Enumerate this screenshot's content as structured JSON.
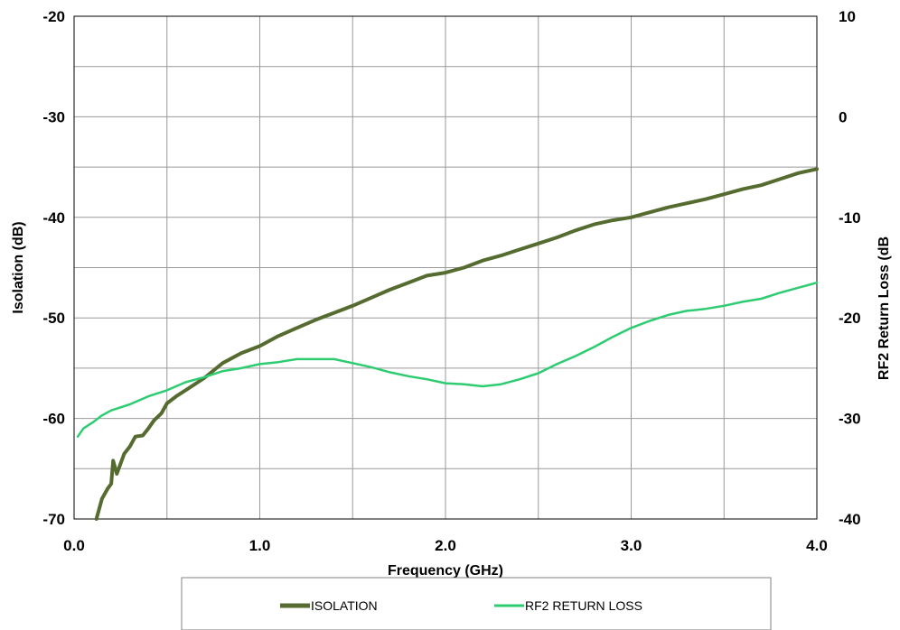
{
  "chart_data": {
    "type": "line",
    "xlabel": "Frequency (GHz)",
    "ylabel_left": "Isolation (dB)",
    "ylabel_right": "RF2 Return Loss  (dB",
    "xlim": [
      0,
      4
    ],
    "ylim_left": [
      -70,
      -20
    ],
    "ylim_right": [
      -40,
      10
    ],
    "x_ticks": [
      "0.0",
      "1.0",
      "2.0",
      "3.0",
      "4.0"
    ],
    "y_left_ticks": [
      "-20",
      "-30",
      "-40",
      "-50",
      "-60",
      "-70"
    ],
    "y_right_ticks": [
      "10",
      "0",
      "-10",
      "-20",
      "-30",
      "-40"
    ],
    "grid": true,
    "legend_position": "bottom",
    "series": [
      {
        "name": "ISOLATION",
        "axis": "left",
        "color": "#556b2f",
        "x": [
          0.12,
          0.15,
          0.18,
          0.2,
          0.21,
          0.23,
          0.27,
          0.3,
          0.33,
          0.37,
          0.4,
          0.43,
          0.47,
          0.5,
          0.55,
          0.6,
          0.7,
          0.8,
          0.9,
          1.0,
          1.1,
          1.2,
          1.3,
          1.4,
          1.5,
          1.6,
          1.7,
          1.8,
          1.9,
          2.0,
          2.1,
          2.2,
          2.3,
          2.4,
          2.5,
          2.6,
          2.7,
          2.8,
          2.9,
          3.0,
          3.1,
          3.2,
          3.3,
          3.4,
          3.5,
          3.6,
          3.7,
          3.8,
          3.9,
          4.0
        ],
        "y": [
          -70,
          -68,
          -67,
          -66.5,
          -64.2,
          -65.5,
          -63.5,
          -62.8,
          -61.8,
          -61.7,
          -61,
          -60.2,
          -59.5,
          -58.5,
          -57.8,
          -57.2,
          -56,
          -54.5,
          -53.5,
          -52.8,
          -51.8,
          -51,
          -50.2,
          -49.5,
          -48.8,
          -48,
          -47.2,
          -46.5,
          -45.8,
          -45.5,
          -45,
          -44.3,
          -43.8,
          -43.2,
          -42.6,
          -42,
          -41.3,
          -40.7,
          -40.3,
          -40,
          -39.5,
          -39,
          -38.6,
          -38.2,
          -37.7,
          -37.2,
          -36.8,
          -36.2,
          -35.6,
          -35.2
        ]
      },
      {
        "name": "RF2 RETURN LOSS",
        "axis": "right",
        "color": "#2ecc71",
        "x": [
          0.02,
          0.05,
          0.1,
          0.15,
          0.2,
          0.3,
          0.4,
          0.5,
          0.6,
          0.7,
          0.8,
          0.9,
          1.0,
          1.1,
          1.2,
          1.3,
          1.4,
          1.5,
          1.6,
          1.7,
          1.8,
          1.9,
          2.0,
          2.1,
          2.2,
          2.3,
          2.4,
          2.5,
          2.6,
          2.7,
          2.8,
          2.9,
          3.0,
          3.1,
          3.2,
          3.3,
          3.4,
          3.5,
          3.6,
          3.7,
          3.8,
          3.9,
          4.0
        ],
        "y": [
          -31.8,
          -31,
          -30.4,
          -29.7,
          -29.2,
          -28.6,
          -27.8,
          -27.2,
          -26.4,
          -25.9,
          -25.3,
          -25,
          -24.6,
          -24.4,
          -24.1,
          -24.1,
          -24.1,
          -24.5,
          -24.9,
          -25.4,
          -25.8,
          -26.1,
          -26.5,
          -26.6,
          -26.8,
          -26.6,
          -26.1,
          -25.5,
          -24.6,
          -23.8,
          -22.9,
          -21.9,
          -21,
          -20.3,
          -19.7,
          -19.3,
          -19.1,
          -18.8,
          -18.4,
          -18.1,
          -17.5,
          -17,
          -16.5
        ]
      }
    ]
  }
}
